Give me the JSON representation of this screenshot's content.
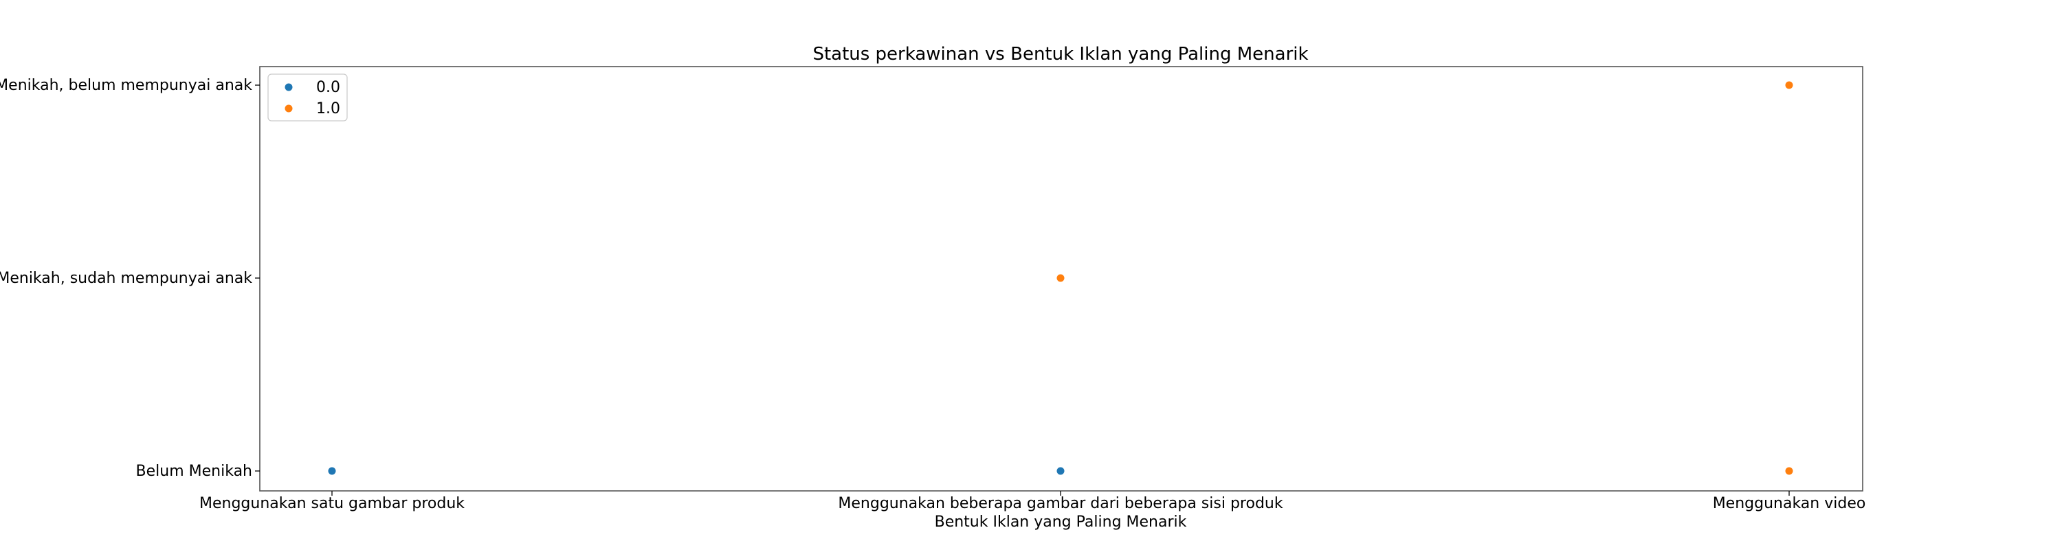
{
  "chart_data": {
    "type": "scatter",
    "title": "Status perkawinan vs Bentuk Iklan yang Paling Menarik",
    "xlabel": "Bentuk Iklan yang Paling Menarik",
    "ylabel": "",
    "x_categories": [
      "Menggunakan satu gambar produk",
      "Menggunakan beberapa gambar dari beberapa sisi produk",
      "Menggunakan video"
    ],
    "y_categories": [
      "Belum Menikah",
      "Menikah, sudah mempunyai anak",
      "Menikah, belum mempunyai anak"
    ],
    "legend_position": "top-left",
    "grid": false,
    "series": [
      {
        "name": "0.0",
        "color": "#1f77b4",
        "points": [
          {
            "x": "Menggunakan satu gambar produk",
            "y": "Belum Menikah"
          },
          {
            "x": "Menggunakan beberapa gambar dari beberapa sisi produk",
            "y": "Belum Menikah"
          }
        ]
      },
      {
        "name": "1.0",
        "color": "#ff7f0e",
        "points": [
          {
            "x": "Menggunakan beberapa gambar dari beberapa sisi produk",
            "y": "Menikah, sudah mempunyai anak"
          },
          {
            "x": "Menggunakan video",
            "y": "Menikah, belum mempunyai anak"
          },
          {
            "x": "Menggunakan video",
            "y": "Belum Menikah"
          }
        ]
      }
    ]
  }
}
